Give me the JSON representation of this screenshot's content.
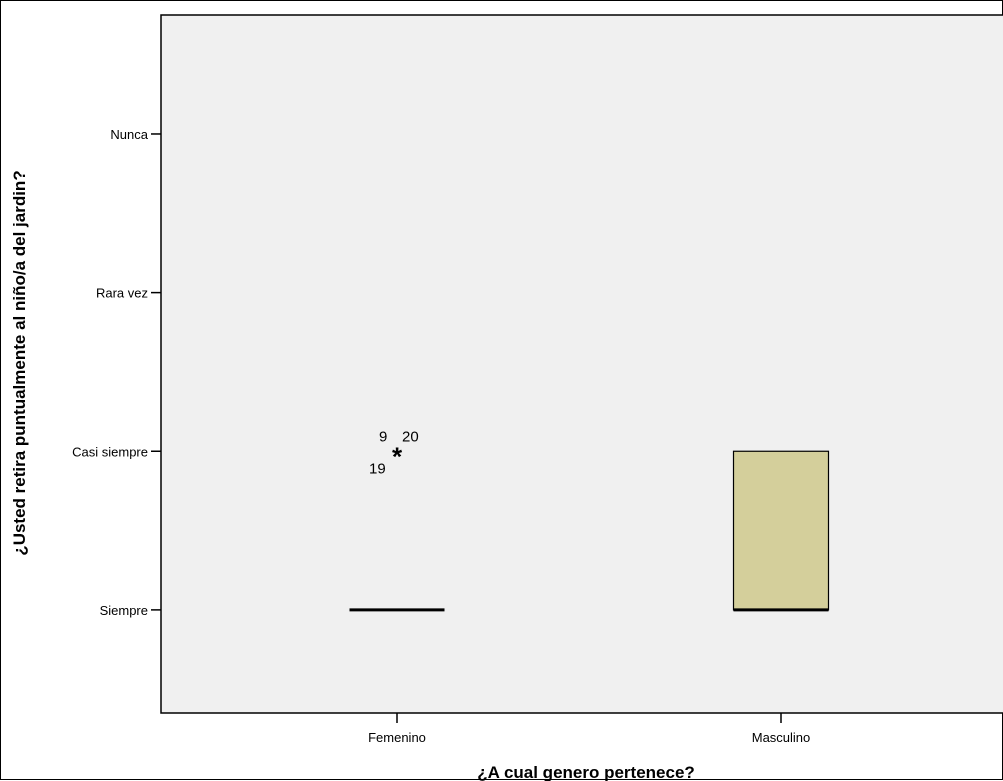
{
  "chart_data": {
    "type": "boxplot",
    "xlabel": "¿A cual genero pertenece?",
    "ylabel": "¿Usted retira puntualmente al niño/a del jardin?",
    "categories": [
      "Femenino",
      "Masculino"
    ],
    "y_levels": [
      "Siempre",
      "Casi siempre",
      "Rara vez",
      "Nunca"
    ],
    "y_level_values": [
      1,
      2,
      3,
      4
    ],
    "ylim": [
      0.35,
      4.75
    ],
    "boxes": [
      {
        "category": "Femenino",
        "q1": 1,
        "median": 1,
        "q3": 1,
        "whisker_low": 1,
        "whisker_high": 1,
        "extreme_outliers": [
          {
            "value": 2,
            "labels": [
              "9",
              "20",
              "19"
            ]
          }
        ]
      },
      {
        "category": "Masculino",
        "q1": 1,
        "median": 1,
        "q3": 2,
        "whisker_low": 1,
        "whisker_high": 2,
        "extreme_outliers": []
      }
    ],
    "box_color": "#d4cf9b",
    "plot_background": "#f0f0f0",
    "grid": false,
    "legend": "none"
  }
}
